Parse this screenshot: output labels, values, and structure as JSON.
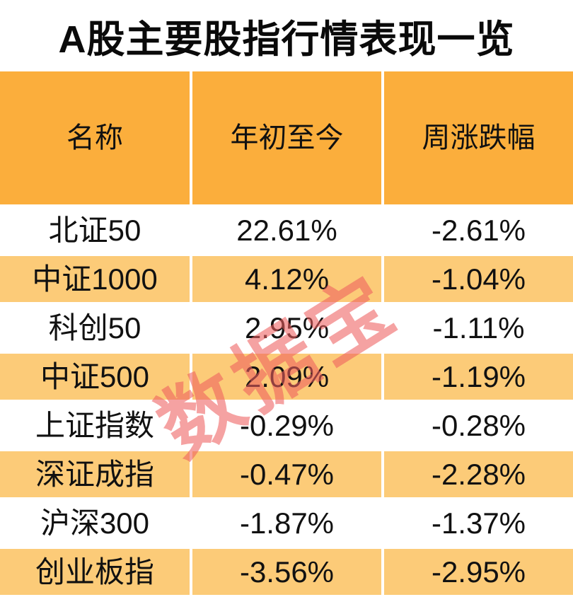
{
  "title": "A股主要股指行情表现一览",
  "watermark": "数据宝",
  "colors": {
    "header_bg": "#FBAE3C",
    "row_alt_bg": "#FCCB78",
    "watermark_rgba": "rgba(238,95,95,0.58)",
    "text": "#111111",
    "background": "#FFFFFF"
  },
  "table": {
    "columns": [
      "名称",
      "年初至今",
      "周涨跌幅"
    ],
    "rows": [
      {
        "name": "北证50",
        "ytd": "22.61%",
        "week": "-2.61%"
      },
      {
        "name": "中证1000",
        "ytd": "4.12%",
        "week": "-1.04%"
      },
      {
        "name": "科创50",
        "ytd": "2.95%",
        "week": "-1.11%"
      },
      {
        "name": "中证500",
        "ytd": "2.09%",
        "week": "-1.19%"
      },
      {
        "name": "上证指数",
        "ytd": "-0.29%",
        "week": "-0.28%"
      },
      {
        "name": "深证成指",
        "ytd": "-0.47%",
        "week": "-2.28%"
      },
      {
        "name": "沪深300",
        "ytd": "-1.87%",
        "week": "-1.37%"
      },
      {
        "name": "创业板指",
        "ytd": "-3.56%",
        "week": "-2.95%"
      }
    ]
  },
  "chart_data": {
    "type": "table",
    "title": "A股主要股指行情表现一览",
    "columns": [
      "名称",
      "年初至今",
      "周涨跌幅"
    ],
    "unit": "percent",
    "rows": [
      {
        "name": "北证50",
        "ytd_pct": 22.61,
        "week_pct": -2.61
      },
      {
        "name": "中证1000",
        "ytd_pct": 4.12,
        "week_pct": -1.04
      },
      {
        "name": "科创50",
        "ytd_pct": 2.95,
        "week_pct": -1.11
      },
      {
        "name": "中证500",
        "ytd_pct": 2.09,
        "week_pct": -1.19
      },
      {
        "name": "上证指数",
        "ytd_pct": -0.29,
        "week_pct": -0.28
      },
      {
        "name": "深证成指",
        "ytd_pct": -0.47,
        "week_pct": -2.28
      },
      {
        "name": "沪深300",
        "ytd_pct": -1.87,
        "week_pct": -1.37
      },
      {
        "name": "创业板指",
        "ytd_pct": -3.56,
        "week_pct": -2.95
      }
    ],
    "layout": {
      "header_background": "#FBAE3C",
      "alternating_row_background": "#FCCB78",
      "watermark_text": "数据宝",
      "watermark_rotation_deg": -32
    }
  }
}
